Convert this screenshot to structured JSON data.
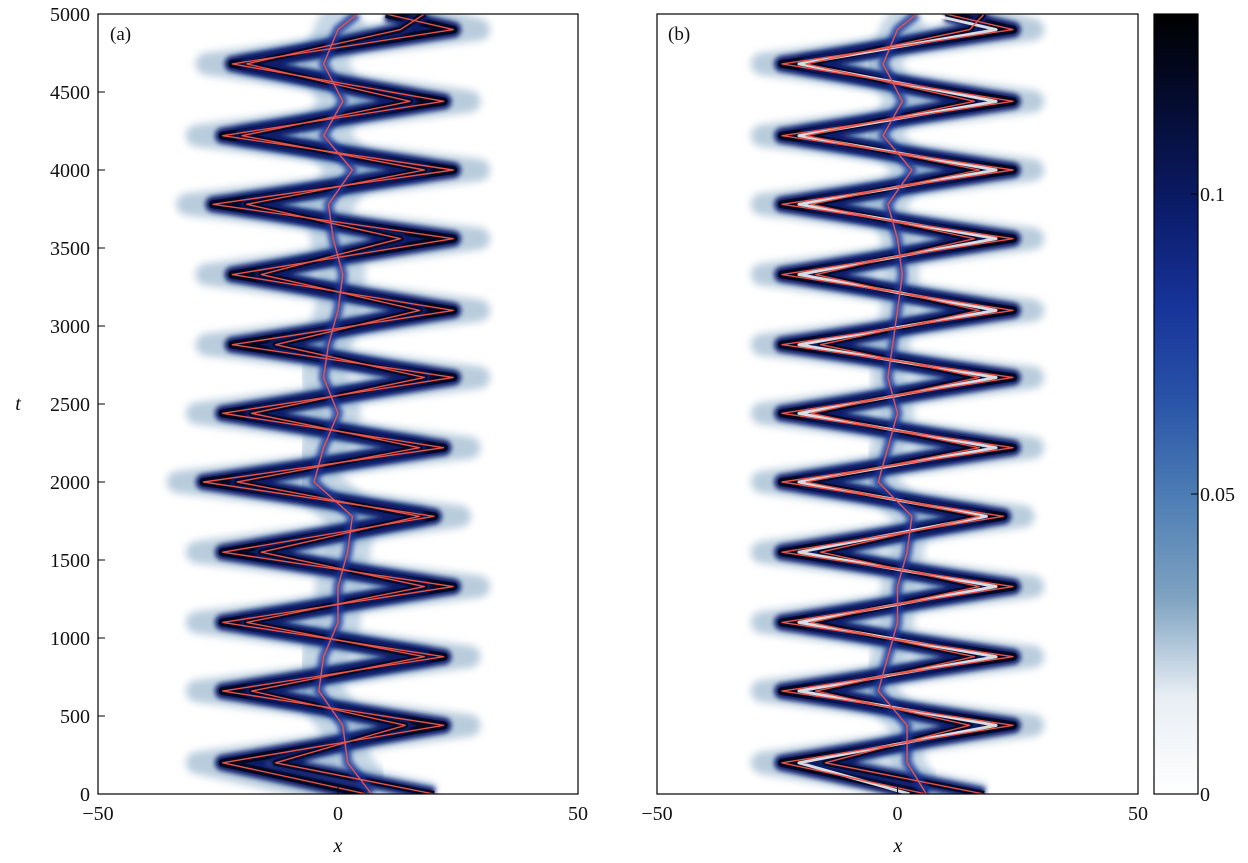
{
  "chart_data": {
    "type": "heatmap",
    "panels": [
      {
        "panel_label": "(a)",
        "xlabel": "x",
        "ylabel": "t",
        "xlim": [
          -50,
          50
        ],
        "ylim": [
          0,
          5000
        ],
        "xticks": [
          -50,
          0,
          50
        ],
        "yticks": [
          0,
          500,
          1000,
          1500,
          2000,
          2500,
          3000,
          3500,
          4000,
          4500,
          5000
        ],
        "turning_points": {
          "t": [
            0,
            200,
            440,
            660,
            880,
            1100,
            1330,
            1550,
            1780,
            2000,
            2220,
            2440,
            2670,
            2880,
            3100,
            3330,
            3560,
            3780,
            4000,
            4220,
            4440,
            4680,
            4900,
            5000
          ],
          "outer_a": [
            6,
            -24,
            22,
            -24,
            22,
            -24,
            24,
            -24,
            20,
            -28,
            22,
            -24,
            24,
            -22,
            24,
            -22,
            24,
            -26,
            24,
            -24,
            22,
            -22,
            24,
            10
          ],
          "outer_b": [
            20,
            -13,
            14,
            -18,
            18,
            -19,
            18,
            -16,
            17,
            -21,
            17,
            -18,
            18,
            -13,
            17,
            -16,
            13,
            -19,
            18,
            -20,
            15,
            -19,
            13,
            18
          ],
          "center": [
            7,
            2,
            1,
            -4,
            -3,
            0,
            0,
            2,
            3,
            -5,
            -3,
            0,
            -3,
            -2,
            0,
            1,
            -1,
            -2,
            3,
            -3,
            1,
            -3,
            0,
            4
          ],
          "halo_extent": 9
        }
      },
      {
        "panel_label": "(b)",
        "xlabel": "x",
        "ylabel": "",
        "xlim": [
          -50,
          50
        ],
        "ylim": [
          0,
          5000
        ],
        "xticks": [
          -50,
          0,
          50
        ],
        "yticks": [],
        "turning_points": {
          "t": [
            0,
            200,
            440,
            660,
            880,
            1100,
            1330,
            1550,
            1780,
            2000,
            2220,
            2440,
            2670,
            2880,
            3100,
            3330,
            3560,
            3780,
            4000,
            4220,
            4440,
            4680,
            4900,
            5000
          ],
          "outer_a": [
            6,
            -24,
            24,
            -24,
            24,
            -24,
            24,
            -24,
            22,
            -24,
            24,
            -24,
            24,
            -24,
            24,
            -24,
            24,
            -24,
            24,
            -24,
            24,
            -24,
            24,
            10
          ],
          "outer_b": [
            18,
            -15,
            15,
            -17,
            16,
            -18,
            17,
            -16,
            17,
            -19,
            17,
            -18,
            17,
            -16,
            17,
            -17,
            16,
            -18,
            17,
            -19,
            16,
            -19,
            15,
            18
          ],
          "center": [
            6,
            2,
            2,
            -4,
            -2,
            0,
            0,
            2,
            3,
            -4,
            -2,
            0,
            -2,
            -1,
            0,
            1,
            0,
            -2,
            3,
            -3,
            1,
            -3,
            0,
            4
          ],
          "halo_extent": 7
        }
      }
    ],
    "colorbar": {
      "range": [
        0,
        0.13
      ],
      "tick_values": [
        0,
        0.05,
        0.1
      ],
      "tick_labels": [
        "0",
        "0.05",
        "0.1"
      ],
      "colors": [
        "#ffffff",
        "#e8eef4",
        "#7fa3c1",
        "#4f7fb5",
        "#2a55a8",
        "#17349a",
        "#0b1c6a",
        "#050d35",
        "#000000"
      ]
    },
    "overlay_color": "#e8534a"
  }
}
